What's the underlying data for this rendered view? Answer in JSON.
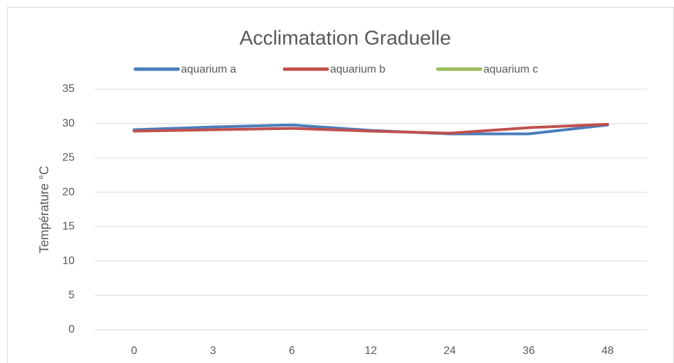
{
  "chart_data": {
    "type": "line",
    "title": "Acclimatation Graduelle",
    "y_label": "Température °C",
    "categories": [
      "0",
      "3",
      "6",
      "12",
      "24",
      "36",
      "48"
    ],
    "series": [
      {
        "name": "aquarium a",
        "color": "#4a7ebb",
        "values": [
          29.1,
          29.5,
          29.8,
          29.0,
          28.5,
          28.5,
          29.8
        ]
      },
      {
        "name": "aquarium b",
        "color": "#c0504d",
        "values": [
          28.9,
          29.1,
          29.3,
          28.9,
          28.6,
          29.4,
          29.9
        ]
      },
      {
        "name": "aquarium c",
        "color": "#9bbb59",
        "values": [
          null,
          null,
          null,
          null,
          null,
          null,
          null
        ]
      }
    ],
    "ylim": [
      0,
      35
    ],
    "yticks": [
      0,
      5,
      10,
      15,
      20,
      25,
      30,
      35
    ],
    "grid": true,
    "legend": "top"
  }
}
